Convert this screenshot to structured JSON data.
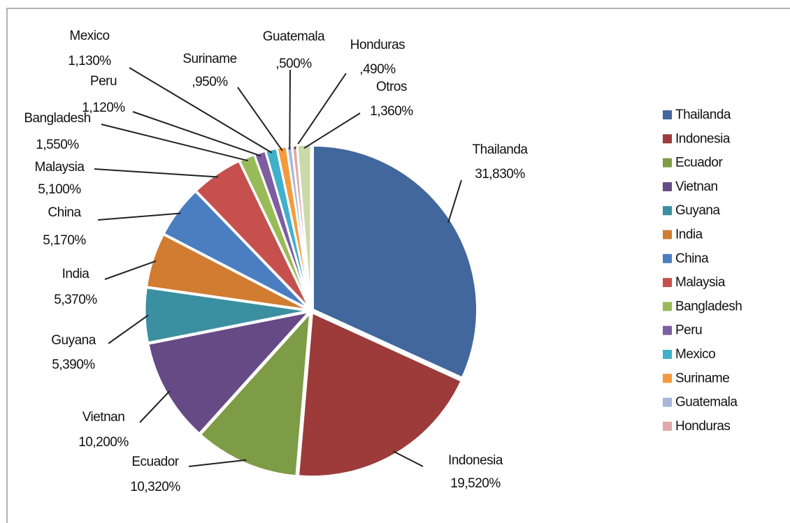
{
  "chart_data": {
    "type": "pie",
    "categories": [
      "Thailanda",
      "Indonesia",
      "Ecuador",
      "Vietnan",
      "Guyana",
      "India",
      "China",
      "Malaysia",
      "Bangladesh",
      "Peru",
      "Mexico",
      "Suriname",
      "Guatemala",
      "Honduras",
      "Otros"
    ],
    "values": [
      31.83,
      19.52,
      10.32,
      10.2,
      5.39,
      5.37,
      5.17,
      5.1,
      1.55,
      1.12,
      1.13,
      0.95,
      0.5,
      0.49,
      1.36
    ],
    "value_labels": [
      "31,830%",
      "19,520%",
      "10,320%",
      "10,200%",
      "5,390%",
      "5,370%",
      "5,170%",
      "5,100%",
      "1,550%",
      "1,120%",
      "1,130%",
      ",950%",
      ",500%",
      ",490%",
      "1,360%"
    ],
    "colors": [
      "#41679c",
      "#9c3b3a",
      "#7e9b45",
      "#664a85",
      "#3a8fa0",
      "#d17c31",
      "#4b7ec0",
      "#c5504d",
      "#98bb58",
      "#7d5ea0",
      "#41b0cb",
      "#f59a3c",
      "#a5b6d8",
      "#e0a8a8",
      "#c9d9a8"
    ],
    "in_legend": [
      true,
      true,
      true,
      true,
      true,
      true,
      true,
      true,
      true,
      true,
      true,
      true,
      true,
      true,
      false
    ],
    "legend": "right"
  }
}
